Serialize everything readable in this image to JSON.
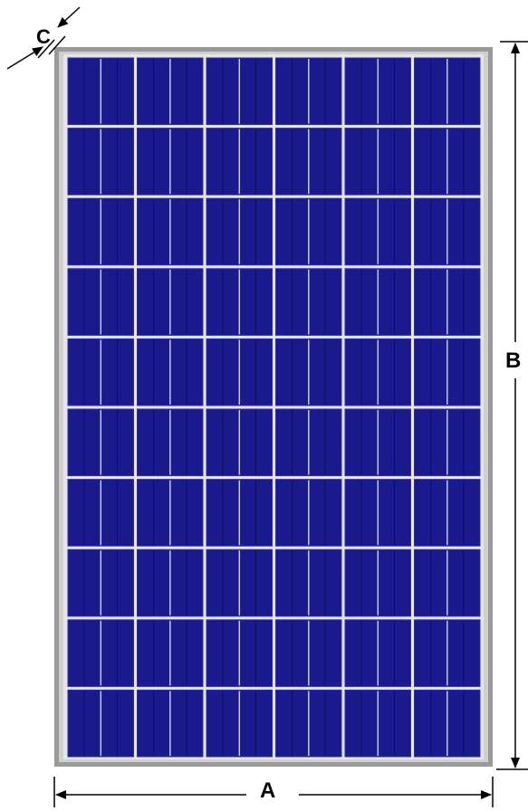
{
  "panel": {
    "cell_rows": 10,
    "cell_columns": 6,
    "finger_lines_per_cell": 4,
    "colors": {
      "frame": "#9a9a9a",
      "frame_inner": "#c8c8c8",
      "gap": "#e6e6ea",
      "cell": "#1a1a8c",
      "cell_edge": "#2d2da6",
      "finger": "#0d0d5e",
      "dimension": "#000000"
    }
  },
  "dimensions": {
    "width_label": "A",
    "height_label": "B",
    "thickness_label": "C"
  }
}
